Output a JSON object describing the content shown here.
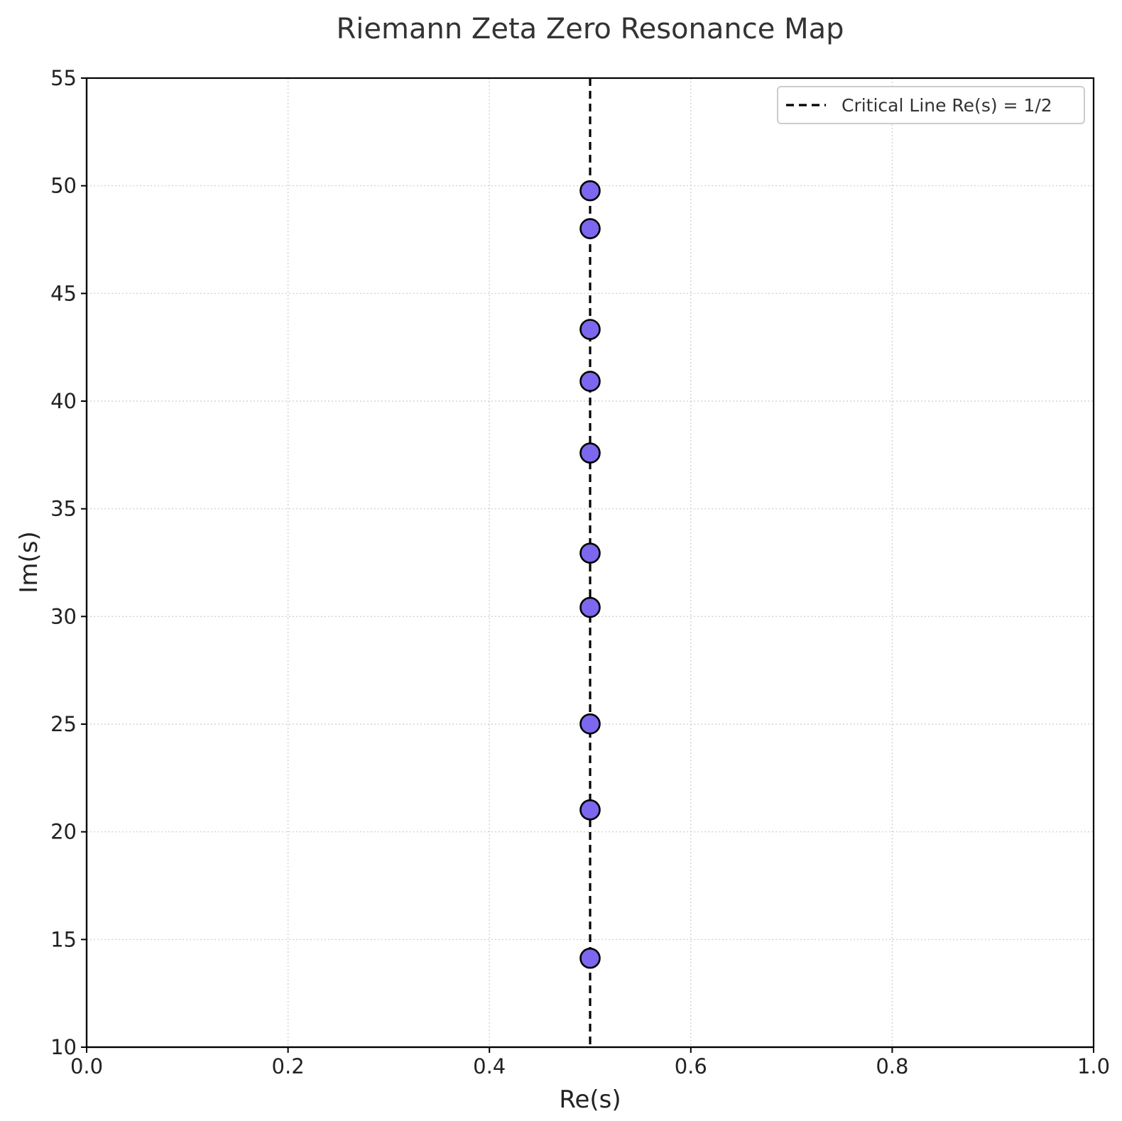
{
  "chart_data": {
    "type": "scatter",
    "title": "Riemann Zeta Zero Resonance Map",
    "xlabel": "Re(s)",
    "ylabel": "Im(s)",
    "xlim": [
      0.0,
      1.0
    ],
    "ylim": [
      10,
      55
    ],
    "x_ticks": [
      "0.0",
      "0.2",
      "0.4",
      "0.6",
      "0.8",
      "1.0"
    ],
    "y_ticks": [
      "10",
      "15",
      "20",
      "25",
      "30",
      "35",
      "40",
      "45",
      "50",
      "55"
    ],
    "grid": true,
    "legend": {
      "placement": "top-right",
      "entries": [
        "Critical Line Re(s) = 1/2"
      ]
    },
    "critical_line": {
      "x": 0.5,
      "label": "Critical Line Re(s) = 1/2",
      "style": "dashed",
      "color": "#000000"
    },
    "points": {
      "x": [
        0.5,
        0.5,
        0.5,
        0.5,
        0.5,
        0.5,
        0.5,
        0.5,
        0.5,
        0.5
      ],
      "y": [
        14.13,
        21.02,
        25.01,
        30.42,
        32.94,
        37.59,
        40.92,
        43.33,
        48.01,
        49.77
      ]
    },
    "colors": {
      "marker_fill": "#7b68ee",
      "marker_edge": "#000000"
    }
  }
}
